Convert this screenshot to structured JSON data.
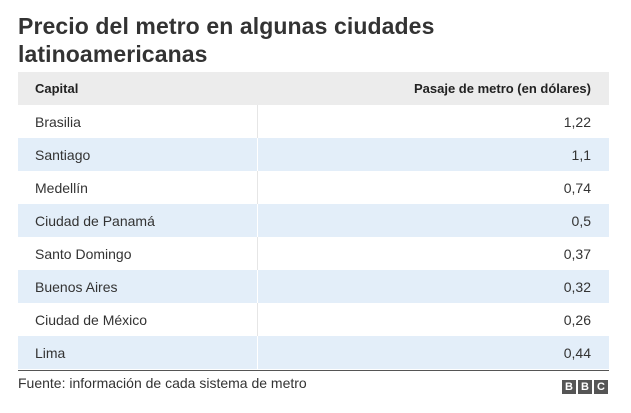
{
  "title": "Precio del metro en algunas ciudades latinoamericanas",
  "chart_data": {
    "type": "table",
    "columns": [
      "Capital",
      "Pasaje de metro (en dólares)"
    ],
    "rows": [
      {
        "capital": "Brasilia",
        "value": "1,22"
      },
      {
        "capital": "Santiago",
        "value": "1,1"
      },
      {
        "capital": "Medellín",
        "value": "0,74"
      },
      {
        "capital": "Ciudad de Panamá",
        "value": "0,5"
      },
      {
        "capital": "Santo Domingo",
        "value": "0,37"
      },
      {
        "capital": "Buenos Aires",
        "value": "0,32"
      },
      {
        "capital": "Ciudad de México",
        "value": "0,26"
      },
      {
        "capital": "Lima",
        "value": "0,44"
      }
    ]
  },
  "source": "Fuente: información de cada sistema de metro",
  "logo": {
    "letters": [
      "B",
      "B",
      "C"
    ],
    "color": "#555555"
  },
  "colors": {
    "header_bg": "#ececec",
    "row_alt_bg": "#e3eef9",
    "row_bg": "#ffffff"
  }
}
